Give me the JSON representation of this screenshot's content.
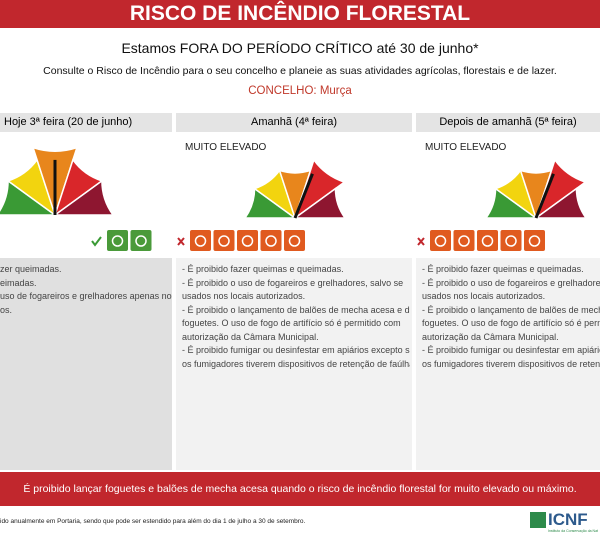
{
  "header": {
    "title": "RISCO DE INCÊNDIO FLORESTAL"
  },
  "intro": {
    "headline": "Estamos FORA DO PERÍODO CRÍTICO até 30 de junho*",
    "text": "Consulte o Risco de Incêndio para o seu concelho e planeie as suas atividades agrícolas, florestais e de lazer.",
    "council_label": "CONCELHO:",
    "council": "Murça"
  },
  "columns": [
    {
      "title": "Hoje 3ª feira (20 de junho)",
      "lines": [
        "zer queimadas.",
        "eimadas.",
        "uso de fogareiros e grelhadores apenas nos",
        "os."
      ]
    },
    {
      "title": "Amanhã (4ª feira)",
      "level": "MUITO ELEVADO",
      "lines": [
        "- É proibido fazer queimas e queimadas.",
        "- É proibido o uso de fogareiros e grelhadores, salvo se",
        "usados nos locais autorizados.",
        "- É proibido o lançamento de balões de mecha acesa e de",
        "foguetes. O uso de fogo de artifício só é permitido com",
        "autorização da Câmara Municipal.",
        "- É proibido fumigar ou desinfestar em apiários excepto se",
        "os fumigadores tiverem dispositivos de retenção de faúlhas."
      ]
    },
    {
      "title": "Depois de amanhã (5ª feira)",
      "level": "MUITO ELEVADO",
      "lines": [
        "- É proibido fazer queimas e queimadas.",
        "- É proibido o uso de fogareiros e grelhadores,",
        "usados nos locais autorizados.",
        "- É proibido o lançamento de balões de mecha",
        "foguetes. O uso de fogo de artifício só é perm",
        "autorização da Câmara Municipal.",
        "- É proibido fumigar ou desinfestar em apiários",
        "os fumigadores tiverem dispositivos de retençã"
      ]
    }
  ],
  "banner": {
    "text": "É proibido lançar foguetes e balões de mecha acesa quando o risco de incêndio florestal for muito elevado ou máximo."
  },
  "footnote": "ido anualmente em Portaria, sendo que pode ser estendido para além do dia 1 de julho a 30 de setembro.",
  "logo": {
    "name": "ICNF",
    "subtitle": "Instituto da Conservação da Natureza e das Florestas"
  }
}
